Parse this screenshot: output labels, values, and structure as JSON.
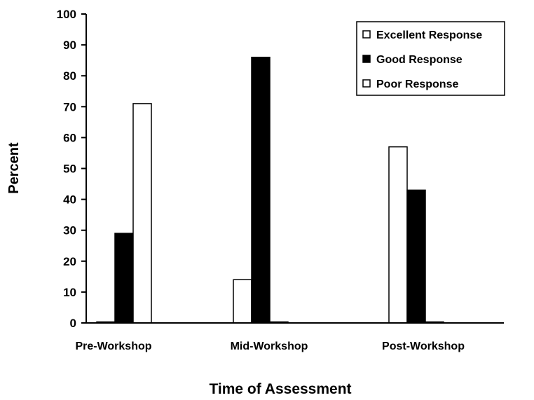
{
  "chart_data": {
    "type": "bar",
    "title": "",
    "xlabel": "Time of Assessment",
    "ylabel": "Percent",
    "ylim": [
      0,
      100
    ],
    "yticks": [
      0,
      10,
      20,
      30,
      40,
      50,
      60,
      70,
      80,
      90,
      100
    ],
    "categories": [
      "Pre-Workshop",
      "Mid-Workshop",
      "Post-Workshop"
    ],
    "series": [
      {
        "name": "Excellent Response",
        "values": [
          0,
          14,
          57
        ],
        "color": "#ffffff"
      },
      {
        "name": "Good Response",
        "values": [
          29,
          86,
          43
        ],
        "color": "#000000"
      },
      {
        "name": "Poor Response",
        "values": [
          71,
          0,
          0
        ],
        "color": "#ffffff"
      }
    ],
    "grid": false,
    "legend": "top-right"
  }
}
